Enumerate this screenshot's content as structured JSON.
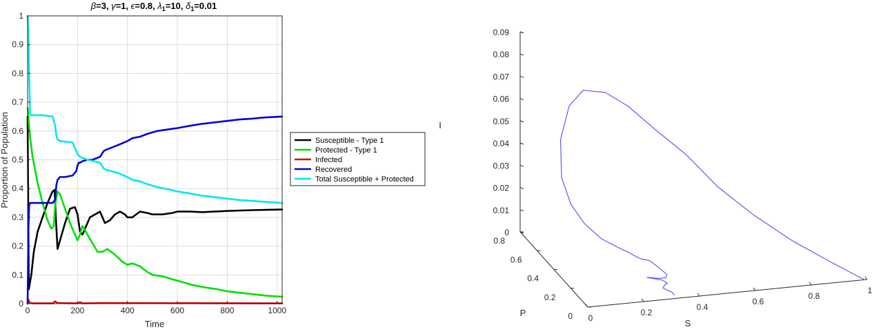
{
  "chart_data": [
    {
      "type": "line",
      "title": "β=3, γ=1, ϵ=0.8, λ1=10, δ1=0.01",
      "title_parts": {
        "beta_sym": "β",
        "beta_val": "=3, ",
        "gamma_sym": "γ",
        "gamma_val": "=1, ",
        "eps_sym": "ϵ",
        "eps_val": "=0.8, ",
        "lambda_sym": "λ",
        "lambda_sub": "1",
        "lambda_val": "=10, ",
        "delta_sym": "δ",
        "delta_sub": "1",
        "delta_val": "=0.01"
      },
      "xlabel": "Time",
      "ylabel": "Proportion of Population",
      "xlim": [
        0,
        1020
      ],
      "ylim": [
        0,
        1
      ],
      "xticks": [
        0,
        200,
        400,
        600,
        800,
        1000
      ],
      "yticks": [
        0,
        0.1,
        0.2,
        0.3,
        0.4,
        0.5,
        0.6,
        0.7,
        0.8,
        0.9,
        1
      ],
      "grid": true,
      "legend_position": "outside-right",
      "series": [
        {
          "name": "Susceptible - Type 1",
          "color": "#000000",
          "x": [
            0,
            5,
            15,
            25,
            40,
            60,
            80,
            100,
            108,
            113,
            120,
            130,
            150,
            170,
            190,
            200,
            210,
            220,
            235,
            250,
            270,
            290,
            300,
            310,
            330,
            350,
            370,
            390,
            400,
            420,
            450,
            480,
            500,
            540,
            580,
            600,
            650,
            700,
            800,
            900,
            1020
          ],
          "y": [
            0.65,
            0.05,
            0.1,
            0.18,
            0.25,
            0.3,
            0.35,
            0.39,
            0.395,
            0.3,
            0.19,
            0.22,
            0.28,
            0.33,
            0.335,
            0.31,
            0.25,
            0.24,
            0.27,
            0.3,
            0.31,
            0.32,
            0.3,
            0.28,
            0.29,
            0.31,
            0.32,
            0.31,
            0.3,
            0.3,
            0.32,
            0.315,
            0.31,
            0.31,
            0.315,
            0.32,
            0.32,
            0.318,
            0.322,
            0.325,
            0.327
          ]
        },
        {
          "name": "Protected - Type 1",
          "color": "#00e000",
          "x": [
            0,
            10,
            20,
            40,
            60,
            80,
            95,
            105,
            110,
            120,
            130,
            150,
            170,
            190,
            200,
            210,
            220,
            240,
            260,
            280,
            300,
            320,
            350,
            380,
            400,
            420,
            450,
            480,
            500,
            540,
            580,
            620,
            660,
            700,
            760,
            800,
            850,
            900,
            950,
            1020
          ],
          "y": [
            0.68,
            0.58,
            0.51,
            0.42,
            0.35,
            0.29,
            0.26,
            0.27,
            0.34,
            0.39,
            0.38,
            0.33,
            0.28,
            0.24,
            0.22,
            0.24,
            0.27,
            0.24,
            0.21,
            0.18,
            0.18,
            0.19,
            0.17,
            0.145,
            0.135,
            0.14,
            0.13,
            0.11,
            0.1,
            0.095,
            0.085,
            0.075,
            0.065,
            0.058,
            0.05,
            0.043,
            0.038,
            0.033,
            0.028,
            0.024
          ]
        },
        {
          "name": "Infected",
          "color": "#e00000",
          "x": [
            0,
            4,
            8,
            20,
            100,
            110,
            120,
            200,
            210,
            220,
            300,
            1020
          ],
          "y": [
            0.02,
            0.012,
            0.003,
            0.001,
            0.001,
            0.008,
            0.002,
            0.001,
            0.005,
            0.001,
            0.002,
            0.001
          ]
        },
        {
          "name": "Recovered",
          "color": "#0000e0",
          "x": [
            0,
            3,
            6,
            10,
            20,
            60,
            100,
            110,
            115,
            120,
            130,
            150,
            180,
            195,
            200,
            205,
            210,
            220,
            240,
            260,
            290,
            305,
            315,
            330,
            360,
            400,
            420,
            450,
            480,
            520,
            560,
            600,
            650,
            700,
            750,
            800,
            850,
            900,
            950,
            1020
          ],
          "y": [
            0.0,
            0.25,
            0.34,
            0.35,
            0.35,
            0.35,
            0.35,
            0.36,
            0.41,
            0.43,
            0.44,
            0.44,
            0.445,
            0.46,
            0.48,
            0.49,
            0.49,
            0.495,
            0.5,
            0.5,
            0.51,
            0.53,
            0.535,
            0.54,
            0.55,
            0.565,
            0.575,
            0.58,
            0.59,
            0.6,
            0.605,
            0.61,
            0.618,
            0.625,
            0.63,
            0.635,
            0.64,
            0.643,
            0.647,
            0.65
          ]
        },
        {
          "name": "Total Susceptible + Protected",
          "color": "#00e6f0",
          "x": [
            0,
            3,
            6,
            10,
            15,
            20,
            60,
            100,
            110,
            115,
            120,
            130,
            180,
            195,
            200,
            205,
            210,
            240,
            290,
            305,
            315,
            360,
            400,
            420,
            450,
            480,
            520,
            560,
            600,
            650,
            700,
            750,
            800,
            850,
            900,
            950,
            1020
          ],
          "y": [
            1.0,
            0.95,
            0.8,
            0.66,
            0.655,
            0.655,
            0.655,
            0.65,
            0.62,
            0.585,
            0.57,
            0.565,
            0.56,
            0.53,
            0.52,
            0.515,
            0.51,
            0.5,
            0.49,
            0.47,
            0.465,
            0.455,
            0.44,
            0.43,
            0.425,
            0.415,
            0.405,
            0.398,
            0.39,
            0.383,
            0.375,
            0.37,
            0.365,
            0.36,
            0.357,
            0.354,
            0.35
          ]
        }
      ]
    },
    {
      "type": "line",
      "subtype": "3d-trajectory",
      "title": "",
      "xlabel": "S",
      "ylabel": "P",
      "zlabel": "I",
      "x_ticks": [
        "0",
        "0.2",
        "0.4",
        "0.6",
        "0.8",
        "1"
      ],
      "y_ticks": [
        "0",
        "0.2",
        "0.4",
        "0.6",
        "0.8"
      ],
      "z_ticks": [
        "0",
        "0.01",
        "0.02",
        "0.03",
        "0.04",
        "0.05",
        "0.06",
        "0.07",
        "0.08",
        "0.09"
      ],
      "xlim": [
        0,
        1
      ],
      "ylim": [
        0,
        0.8
      ],
      "zlim": [
        0,
        0.09
      ],
      "series": [
        {
          "color": "#5a5aff",
          "S": [
            0.99,
            0.88,
            0.75,
            0.62,
            0.5,
            0.4,
            0.3,
            0.22,
            0.16,
            0.12,
            0.1,
            0.09,
            0.1,
            0.13,
            0.17,
            0.22,
            0.27,
            0.29,
            0.3,
            0.3,
            0.31,
            0.33,
            0.35,
            0.34,
            0.31,
            0.27,
            0.28,
            0.32,
            0.33,
            0.31,
            0.3,
            0.31,
            0.32,
            0.32
          ],
          "P": [
            0.0,
            0.03,
            0.06,
            0.09,
            0.12,
            0.15,
            0.19,
            0.25,
            0.32,
            0.45,
            0.55,
            0.62,
            0.64,
            0.63,
            0.6,
            0.57,
            0.53,
            0.48,
            0.42,
            0.35,
            0.3,
            0.26,
            0.22,
            0.2,
            0.19,
            0.19,
            0.2,
            0.18,
            0.15,
            0.12,
            0.1,
            0.08,
            0.06,
            0.03
          ],
          "I": [
            0.0,
            0.008,
            0.018,
            0.03,
            0.043,
            0.057,
            0.068,
            0.077,
            0.081,
            0.077,
            0.066,
            0.048,
            0.03,
            0.018,
            0.01,
            0.004,
            0.001,
            0.0008,
            0.0012,
            0.003,
            0.0045,
            0.003,
            0.001,
            0.0005,
            0.001,
            0.002,
            0.0012,
            0.0006,
            0.0004,
            0.0008,
            0.0006,
            0.0003,
            0.0002,
            0.0001
          ]
        }
      ]
    }
  ]
}
